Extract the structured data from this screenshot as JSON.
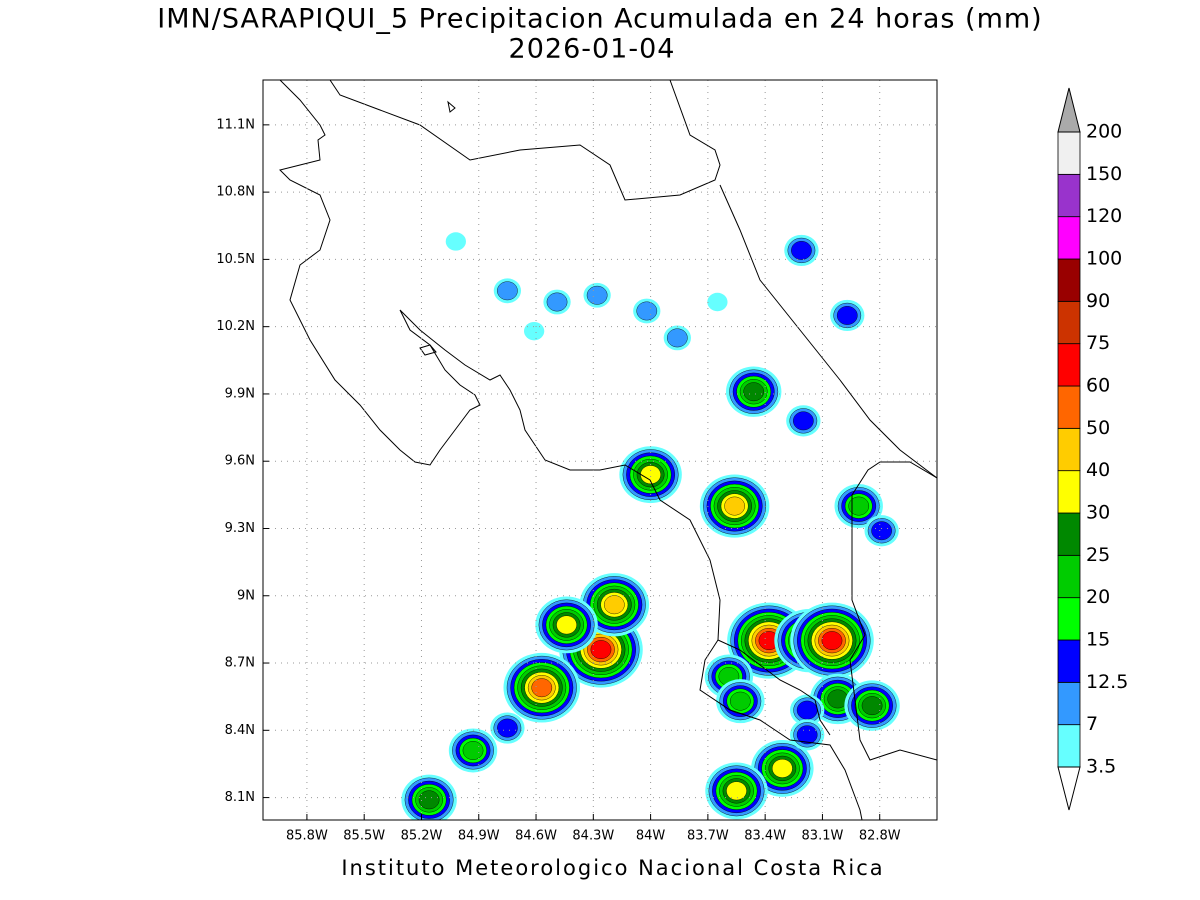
{
  "title": "IMN/SARAPIQUI_5 Precipitacion Acumulada en 24 horas (mm)",
  "subtitle": "2026-01-04",
  "footer": "Instituto Meteorologico Nacional Costa Rica",
  "map": {
    "xlim": [
      -86.03,
      -82.5
    ],
    "ylim": [
      8.0,
      11.3
    ],
    "grid": true,
    "xticks": [
      {
        "value": -85.8,
        "label": "85.8W"
      },
      {
        "value": -85.5,
        "label": "85.5W"
      },
      {
        "value": -85.2,
        "label": "85.2W"
      },
      {
        "value": -84.9,
        "label": "84.9W"
      },
      {
        "value": -84.6,
        "label": "84.6W"
      },
      {
        "value": -84.3,
        "label": "84.3W"
      },
      {
        "value": -84.0,
        "label": "84W"
      },
      {
        "value": -83.7,
        "label": "83.7W"
      },
      {
        "value": -83.4,
        "label": "83.4W"
      },
      {
        "value": -83.1,
        "label": "83.1W"
      },
      {
        "value": -82.8,
        "label": "82.8W"
      }
    ],
    "yticks": [
      {
        "value": 8.1,
        "label": "8.1N"
      },
      {
        "value": 8.4,
        "label": "8.4N"
      },
      {
        "value": 8.7,
        "label": "8.7N"
      },
      {
        "value": 9.0,
        "label": "9N"
      },
      {
        "value": 9.3,
        "label": "9.3N"
      },
      {
        "value": 9.6,
        "label": "9.6N"
      },
      {
        "value": 9.9,
        "label": "9.9N"
      },
      {
        "value": 10.2,
        "label": "10.2N"
      },
      {
        "value": 10.5,
        "label": "10.5N"
      },
      {
        "value": 10.8,
        "label": "10.8N"
      },
      {
        "value": 11.1,
        "label": "11.1N"
      }
    ],
    "cells": [
      {
        "lon": -83.56,
        "lat": 9.4,
        "value": 40
      },
      {
        "lon": -84.26,
        "lat": 8.76,
        "value": 60
      },
      {
        "lon": -84.19,
        "lat": 8.96,
        "value": 40
      },
      {
        "lon": -84.57,
        "lat": 8.59,
        "value": 50
      },
      {
        "lon": -83.38,
        "lat": 8.8,
        "value": 60
      },
      {
        "lon": -83.17,
        "lat": 8.8,
        "value": 40
      },
      {
        "lon": -83.05,
        "lat": 8.8,
        "value": 60
      },
      {
        "lon": -84.44,
        "lat": 8.87,
        "value": 30
      },
      {
        "lon": -84.0,
        "lat": 9.54,
        "value": 30
      },
      {
        "lon": -83.31,
        "lat": 8.23,
        "value": 30
      },
      {
        "lon": -83.55,
        "lat": 8.13,
        "value": 30
      },
      {
        "lon": -83.02,
        "lat": 8.54,
        "value": 25
      },
      {
        "lon": -82.84,
        "lat": 8.51,
        "value": 25
      },
      {
        "lon": -85.16,
        "lat": 8.09,
        "value": 25
      },
      {
        "lon": -83.21,
        "lat": 10.54,
        "value": 12.5
      },
      {
        "lon": -82.97,
        "lat": 10.25,
        "value": 12.5
      },
      {
        "lon": -83.46,
        "lat": 9.91,
        "value": 25
      },
      {
        "lon": -84.93,
        "lat": 8.31,
        "value": 20
      },
      {
        "lon": -84.75,
        "lat": 8.41,
        "value": 12.5
      },
      {
        "lon": -83.18,
        "lat": 8.49,
        "value": 12.5
      },
      {
        "lon": -83.18,
        "lat": 8.38,
        "value": 12.5
      },
      {
        "lon": -83.2,
        "lat": 9.78,
        "value": 12.5
      },
      {
        "lon": -82.91,
        "lat": 9.4,
        "value": 20
      },
      {
        "lon": -82.79,
        "lat": 9.29,
        "value": 12.5
      },
      {
        "lon": -83.59,
        "lat": 8.64,
        "value": 20
      },
      {
        "lon": -83.53,
        "lat": 8.53,
        "value": 20
      },
      {
        "lon": -84.75,
        "lat": 10.36,
        "value": 7
      },
      {
        "lon": -84.49,
        "lat": 10.31,
        "value": 7
      },
      {
        "lon": -84.28,
        "lat": 10.34,
        "value": 7
      },
      {
        "lon": -84.02,
        "lat": 10.27,
        "value": 7
      },
      {
        "lon": -83.86,
        "lat": 10.15,
        "value": 7
      },
      {
        "lon": -83.65,
        "lat": 10.31,
        "value": 3.5
      },
      {
        "lon": -85.02,
        "lat": 10.58,
        "value": 3.5
      },
      {
        "lon": -84.61,
        "lat": 10.18,
        "value": 3.5
      }
    ]
  },
  "colorbar": {
    "levels": [
      3.5,
      7,
      12.5,
      15,
      20,
      25,
      30,
      40,
      50,
      60,
      75,
      90,
      100,
      120,
      150,
      200
    ],
    "colors": [
      "#66ffff",
      "#3399ff",
      "#0000ff",
      "#00ff00",
      "#00cc00",
      "#008800",
      "#ffff00",
      "#ffcc00",
      "#ff6600",
      "#ff0000",
      "#cc3300",
      "#990000",
      "#ff00ff",
      "#9933cc",
      "#f0f0f0"
    ],
    "under_color": "#ffffff",
    "over_color": "#aaaaaa"
  }
}
